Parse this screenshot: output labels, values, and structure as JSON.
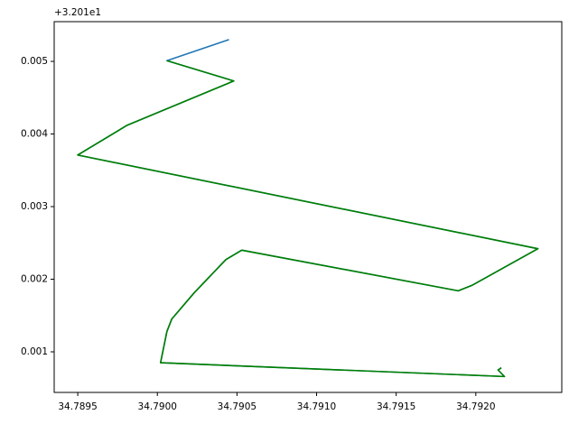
{
  "chart_data": {
    "type": "line",
    "y_offset_label": "+3.201e1",
    "x": [
      34.79045,
      34.79006,
      34.79048,
      34.78981,
      34.7895,
      34.79239,
      34.79198,
      34.79189,
      34.79053,
      34.79043,
      34.79023,
      34.79009,
      34.79006,
      34.79002,
      34.79218,
      34.79214,
      34.79216
    ],
    "series": [
      {
        "color": "#1f77b4",
        "values": [
          0.0053,
          0.00501,
          0.00473,
          0.00412,
          0.00371,
          0.00242,
          0.00192,
          0.00184,
          0.0024,
          0.00227,
          0.00181,
          0.00145,
          0.00128,
          0.00085,
          0.00066,
          0.00075,
          0.00078
        ]
      },
      {
        "color": "#008000",
        "values": [
          null,
          0.00501,
          0.00473,
          0.00412,
          0.00371,
          0.00242,
          0.00192,
          0.00184,
          0.0024,
          0.00227,
          0.00181,
          0.00145,
          0.00128,
          0.00085,
          0.00066,
          0.00075,
          0.00078
        ]
      }
    ],
    "xlim": [
      34.789352,
      34.79254
    ],
    "ylim": [
      0.000441,
      0.005547
    ],
    "xticks": [
      34.7895,
      {
        "value": 34.79,
        "label": "34.7900"
      },
      34.7905,
      {
        "value": 34.791,
        "label": "34.7910"
      },
      34.7915,
      {
        "value": 34.792,
        "label": "34.7920"
      }
    ],
    "yticks": [
      0.001,
      0.002,
      0.003,
      0.004,
      0.005
    ]
  }
}
